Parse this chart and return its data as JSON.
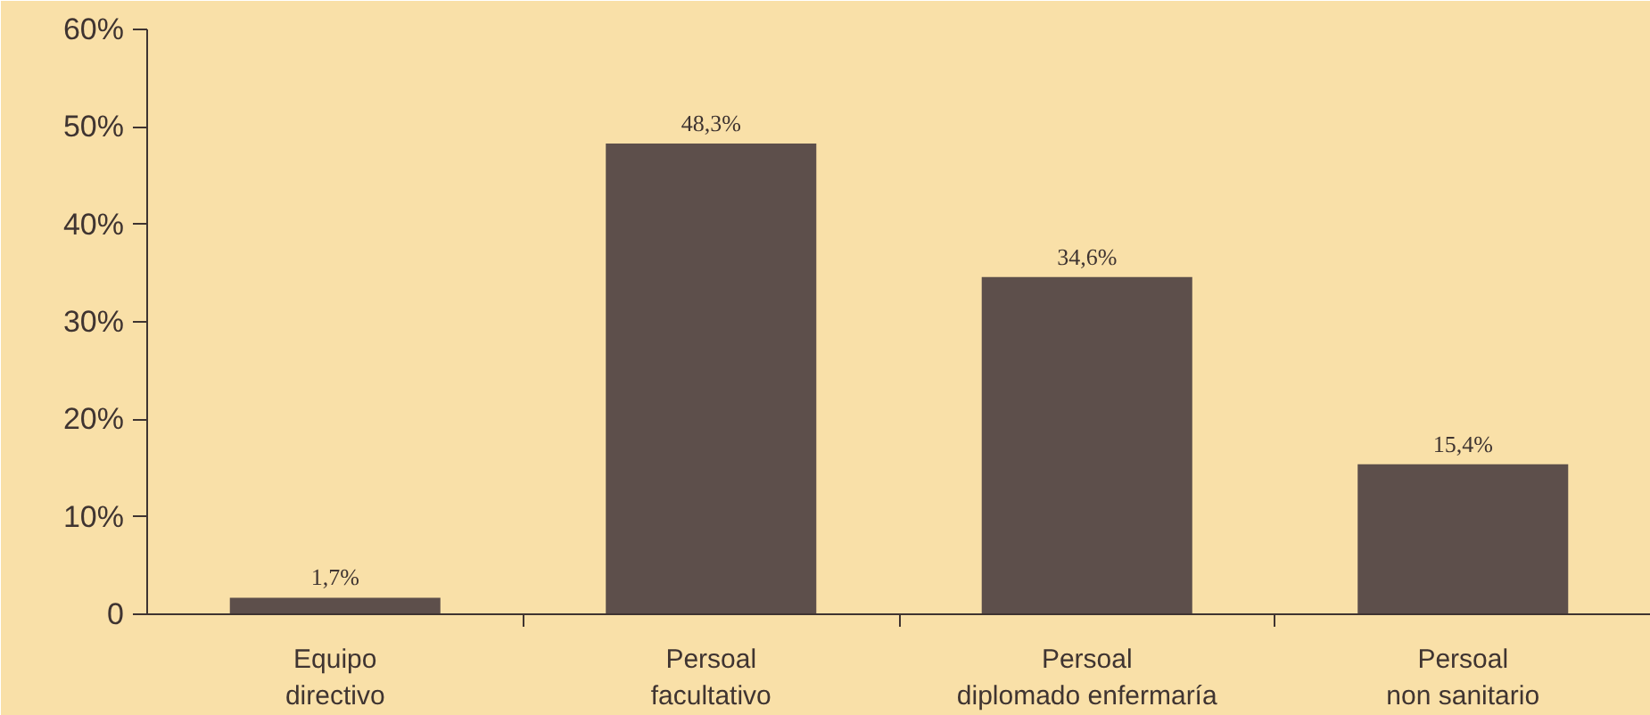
{
  "chart_data": {
    "type": "bar",
    "categories": [
      "Equipo\ndirectivo",
      "Persoal\nfacultativo",
      "Persoal\ndiplomado enfermaría",
      "Persoal\nnon sanitario"
    ],
    "values": [
      1.7,
      48.3,
      34.6,
      15.4
    ],
    "value_labels": [
      "1,7%",
      "48,3%",
      "34,6%",
      "15,4%"
    ],
    "color": "#5d4f4b",
    "ylim": [
      0,
      60
    ],
    "yticks": [
      0,
      {
        "value": 10,
        "label": "10%"
      },
      {
        "value": 20,
        "label": "20%"
      },
      {
        "value": 30,
        "label": "30%"
      },
      {
        "value": 40,
        "label": "40%"
      },
      {
        "value": 50,
        "label": "50%"
      },
      {
        "value": 60,
        "label": "60%"
      }
    ],
    "grid": false
  }
}
